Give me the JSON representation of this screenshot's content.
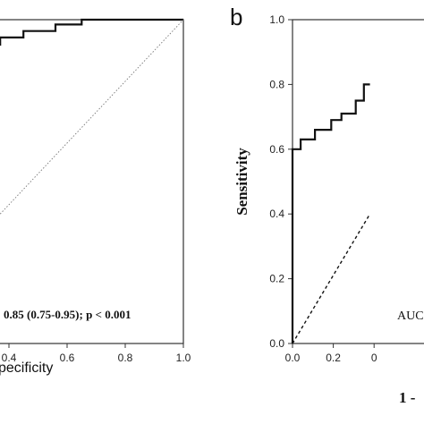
{
  "chart_data": [
    {
      "type": "line",
      "panel": "a (cropped)",
      "xlabel": "pecificity",
      "ylabel": "",
      "xlim": [
        0,
        1
      ],
      "ylim": [
        0,
        1
      ],
      "x_ticks": [
        "0.4",
        "0.6",
        "0.8",
        "1.0"
      ],
      "annotation": "0.85 (0.75-0.95); p < 0.001",
      "series": [
        {
          "line_style": "solid",
          "x": [
            0.37,
            0.37,
            0.45,
            0.45,
            0.56,
            0.56,
            0.65,
            0.65,
            1.0
          ],
          "y": [
            0.92,
            0.945,
            0.945,
            0.965,
            0.965,
            0.985,
            0.985,
            1.0,
            1.0
          ]
        },
        {
          "line_style": "dotted",
          "x": [
            0.37,
            1.0
          ],
          "y": [
            0.4,
            1.0
          ]
        }
      ]
    },
    {
      "type": "line",
      "panel": "b",
      "panel_letter": "b",
      "xlabel": "1 -",
      "ylabel": "Sensitivity",
      "xlim": [
        0,
        1
      ],
      "ylim": [
        0,
        1
      ],
      "x_ticks": [
        "0.0",
        "0.2",
        "0"
      ],
      "y_ticks": [
        "0.0",
        "0.2",
        "0.4",
        "0.6",
        "0.8",
        "1.0"
      ],
      "annotation": "AUC",
      "series": [
        {
          "line_style": "solid",
          "x": [
            0,
            0,
            0.04,
            0.04,
            0.11,
            0.11,
            0.19,
            0.19,
            0.24,
            0.24,
            0.31,
            0.31,
            0.35,
            0.35,
            0.38
          ],
          "y": [
            0,
            0.6,
            0.6,
            0.63,
            0.63,
            0.66,
            0.66,
            0.69,
            0.69,
            0.71,
            0.71,
            0.75,
            0.75,
            0.8,
            0.8
          ]
        },
        {
          "line_style": "dashed",
          "x": [
            0,
            0.38
          ],
          "y": [
            0,
            0.4
          ]
        }
      ]
    }
  ]
}
